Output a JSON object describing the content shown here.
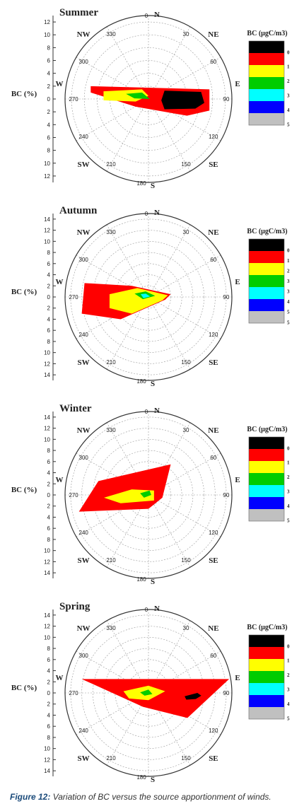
{
  "figure": {
    "caption_label": "Figure 12:",
    "caption_text": "Variation of BC versus the source apportionment of winds."
  },
  "chart_data": [
    {
      "type": "polar-contour",
      "title": "Summer",
      "radial_axis_label": "BC (%)",
      "radial_ticks": [
        0,
        2,
        4,
        6,
        8,
        10,
        12
      ],
      "rmax": 13,
      "angle_ticks": [
        "0",
        "30",
        "60",
        "90",
        "120",
        "150",
        "180",
        "210",
        "240",
        "270",
        "300",
        "330"
      ],
      "directions": [
        "N",
        "NE",
        "E",
        "SE",
        "S",
        "SW",
        "W",
        "NW"
      ],
      "legend_title": "BC (µgC/m3)",
      "legend_levels": [
        "0",
        "1",
        "2",
        "3",
        "4",
        "5"
      ],
      "legend_colors": [
        "#000000",
        "#ff0000",
        "#ffff00",
        "#00cc00",
        "#00ffff",
        "#0000ff",
        "#c0c0c0"
      ],
      "regions": [
        {
          "level": 1,
          "points": [
            [
              -9,
              2
            ],
            [
              9.5,
              1.5
            ],
            [
              9.5,
              -1.8
            ],
            [
              6,
              -2.6
            ],
            [
              -2,
              -1.2
            ],
            [
              -9,
              1
            ]
          ]
        },
        {
          "level": 2,
          "points": [
            [
              -7,
              1.2
            ],
            [
              -1,
              1.5
            ],
            [
              0,
              0.5
            ],
            [
              -2,
              -0.4
            ],
            [
              -7,
              -0.2
            ]
          ]
        },
        {
          "level": 3,
          "points": [
            [
              -3.5,
              0.8
            ],
            [
              -1,
              1
            ],
            [
              0.2,
              0
            ],
            [
              -2.2,
              0.1
            ]
          ]
        },
        {
          "level": 0,
          "points": [
            [
              2.5,
              1.3
            ],
            [
              8.2,
              1.1
            ],
            [
              8.7,
              -0.6
            ],
            [
              7.3,
              -1.5
            ],
            [
              2.5,
              -1.6
            ],
            [
              2,
              -0.2
            ]
          ]
        }
      ]
    },
    {
      "type": "polar-contour",
      "title": "Autumn",
      "radial_axis_label": "BC (%)",
      "radial_ticks": [
        0,
        2,
        4,
        6,
        8,
        10,
        12,
        14
      ],
      "rmax": 15,
      "angle_ticks": [
        "0",
        "30",
        "60",
        "90",
        "120",
        "150",
        "180",
        "210",
        "240",
        "270",
        "300",
        "330"
      ],
      "directions": [
        "N",
        "NE",
        "E",
        "SE",
        "S",
        "SW",
        "W",
        "NW"
      ],
      "legend_title": "BC (µgC/m3)",
      "legend_levels": [
        "0",
        "1",
        "2",
        "3",
        "3",
        "4",
        "5",
        "5"
      ],
      "legend_colors": [
        "#000000",
        "#ff0000",
        "#ffff00",
        "#00cc00",
        "#00ffff",
        "#0000ff",
        "#c0c0c0"
      ],
      "regions": [
        {
          "level": 1,
          "points": [
            [
              -11.5,
              2.5
            ],
            [
              -3,
              2
            ],
            [
              4,
              0.5
            ],
            [
              3,
              -0.5
            ],
            [
              -5,
              -4
            ],
            [
              -12,
              -3
            ]
          ]
        },
        {
          "level": 2,
          "points": [
            [
              -7,
              0.5
            ],
            [
              -2,
              1.6
            ],
            [
              3.5,
              0.3
            ],
            [
              2.5,
              -0.6
            ],
            [
              -3,
              -3
            ],
            [
              -7,
              -2
            ]
          ]
        },
        {
          "level": 3,
          "points": [
            [
              -2.5,
              0.6
            ],
            [
              -0.5,
              1
            ],
            [
              1.2,
              0.2
            ],
            [
              -1,
              -0.4
            ]
          ]
        },
        {
          "level": 4,
          "points": [
            [
              -1.4,
              0.5
            ],
            [
              -0.5,
              0.6
            ],
            [
              0.3,
              0.1
            ],
            [
              -0.9,
              -0.2
            ]
          ]
        }
      ]
    },
    {
      "type": "polar-contour",
      "title": "Winter",
      "radial_axis_label": "BC (%)",
      "radial_ticks": [
        0,
        2,
        4,
        6,
        8,
        10,
        12,
        14
      ],
      "rmax": 15,
      "angle_ticks": [
        "0",
        "30",
        "60",
        "90",
        "120",
        "150",
        "180",
        "210",
        "240",
        "270",
        "300",
        "330"
      ],
      "directions": [
        "N",
        "NE",
        "E",
        "SE",
        "S",
        "SW",
        "W",
        "NW"
      ],
      "legend_title": "BC (µgC/m3)",
      "legend_levels": [
        "0",
        "1",
        "2",
        "3",
        "4",
        "5"
      ],
      "legend_colors": [
        "#000000",
        "#ff0000",
        "#ffff00",
        "#00cc00",
        "#00ffff",
        "#0000ff",
        "#c0c0c0"
      ],
      "regions": [
        {
          "level": 1,
          "points": [
            [
              -12.5,
              -3
            ],
            [
              -9,
              2.5
            ],
            [
              4,
              5.5
            ],
            [
              2.5,
              -0.5
            ],
            [
              0,
              -2.5
            ]
          ]
        },
        {
          "level": 2,
          "points": [
            [
              -8,
              -0.5
            ],
            [
              -3,
              1
            ],
            [
              1,
              0.8
            ],
            [
              1,
              -1
            ],
            [
              -5,
              -1.5
            ]
          ]
        },
        {
          "level": 3,
          "points": [
            [
              -1.5,
              0.3
            ],
            [
              0.2,
              0.8
            ],
            [
              0.5,
              0
            ],
            [
              -0.8,
              -0.5
            ]
          ]
        }
      ]
    },
    {
      "type": "polar-contour",
      "title": "Spring",
      "radial_axis_label": "BC (%)",
      "radial_ticks": [
        0,
        2,
        4,
        6,
        8,
        10,
        12,
        14
      ],
      "rmax": 15,
      "angle_ticks": [
        "0",
        "30",
        "60",
        "90",
        "120",
        "150",
        "180",
        "210",
        "240",
        "270",
        "300",
        "330"
      ],
      "directions": [
        "N",
        "NE",
        "E",
        "SE",
        "S",
        "SW",
        "W",
        "NW"
      ],
      "legend_title": "BC (µgC/m3)",
      "legend_levels": [
        "0",
        "1",
        "2",
        "3",
        "4",
        "5"
      ],
      "legend_colors": [
        "#000000",
        "#ff0000",
        "#ffff00",
        "#00cc00",
        "#00ffff",
        "#0000ff",
        "#c0c0c0"
      ],
      "regions": [
        {
          "level": 1,
          "points": [
            [
              -12,
              2.5
            ],
            [
              14.5,
              2.5
            ],
            [
              7,
              -4.5
            ],
            [
              -1,
              -2.5
            ]
          ]
        },
        {
          "level": 2,
          "points": [
            [
              -4.5,
              0.3
            ],
            [
              0,
              1.3
            ],
            [
              3,
              0.3
            ],
            [
              0,
              -1.3
            ],
            [
              -3.5,
              -1
            ]
          ]
        },
        {
          "level": 3,
          "points": [
            [
              -1.5,
              0.1
            ],
            [
              0,
              0.6
            ],
            [
              0.7,
              -0.2
            ],
            [
              -0.7,
              -0.5
            ]
          ]
        },
        {
          "level": 0,
          "points": [
            [
              6.5,
              -0.6
            ],
            [
              8.8,
              0
            ],
            [
              9.5,
              -0.5
            ],
            [
              8.5,
              -1.1
            ],
            [
              6.8,
              -1.2
            ]
          ]
        }
      ]
    }
  ]
}
